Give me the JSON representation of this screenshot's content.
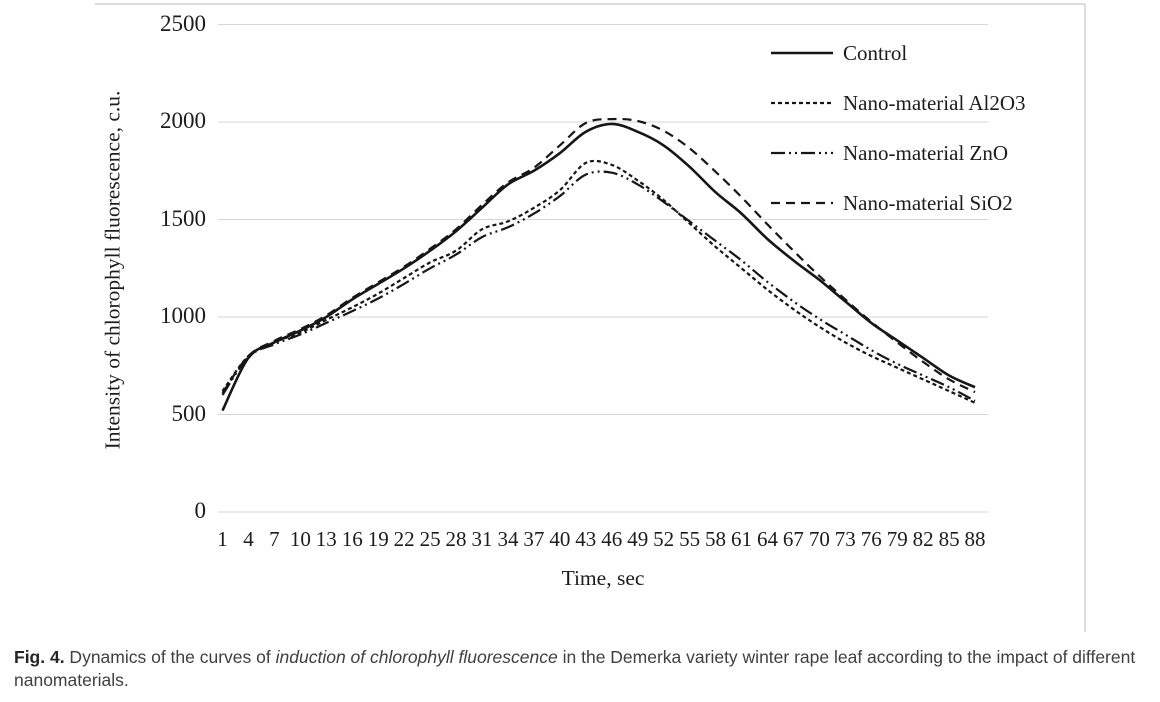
{
  "caption": {
    "label": "Fig. 4.",
    "before_italic": " Dynamics of the curves of ",
    "italic": "induction of chlorophyll fluorescence",
    "after_italic": " in the Demerka variety winter rape leaf according to the impact of different nanomaterials."
  },
  "chart_data": {
    "type": "line",
    "title": "",
    "xlabel": "Time, sec",
    "ylabel": "Intensity of chlorophyll fluorescence, c.u.",
    "x": [
      1,
      4,
      7,
      10,
      13,
      16,
      19,
      22,
      25,
      28,
      31,
      34,
      37,
      40,
      43,
      46,
      49,
      52,
      55,
      58,
      61,
      64,
      67,
      70,
      73,
      76,
      79,
      82,
      85,
      88
    ],
    "y_ticks": [
      0,
      500,
      1000,
      1500,
      2000,
      2500
    ],
    "ylim": [
      0,
      2500
    ],
    "xlim": [
      1,
      88
    ],
    "grid": "horizontal",
    "legend_position": "top-right-inside",
    "series": [
      {
        "name": "Control",
        "dash": "",
        "width": 2.6,
        "values": [
          520,
          790,
          870,
          930,
          1000,
          1090,
          1170,
          1250,
          1340,
          1440,
          1560,
          1680,
          1750,
          1840,
          1950,
          1990,
          1950,
          1880,
          1770,
          1640,
          1530,
          1400,
          1290,
          1190,
          1080,
          970,
          880,
          790,
          700,
          640
        ]
      },
      {
        "name": "Nano-material Al2O3",
        "dash": "4 3",
        "width": 2.2,
        "values": [
          620,
          800,
          870,
          920,
          985,
          1050,
          1120,
          1200,
          1280,
          1340,
          1450,
          1490,
          1560,
          1650,
          1790,
          1780,
          1700,
          1600,
          1480,
          1360,
          1250,
          1140,
          1040,
          950,
          870,
          800,
          740,
          680,
          620,
          560
        ]
      },
      {
        "name": "Nano-material ZnO",
        "dash": "14 4 2 4 2 4",
        "width": 2.2,
        "values": [
          600,
          795,
          860,
          910,
          970,
          1030,
          1095,
          1170,
          1250,
          1320,
          1410,
          1460,
          1530,
          1620,
          1730,
          1740,
          1680,
          1590,
          1490,
          1390,
          1290,
          1180,
          1080,
          990,
          910,
          830,
          760,
          700,
          640,
          570
        ]
      },
      {
        "name": "Nano-material SiO2",
        "dash": "9 6",
        "width": 2.2,
        "values": [
          610,
          800,
          878,
          938,
          1008,
          1098,
          1178,
          1258,
          1350,
          1450,
          1575,
          1690,
          1765,
          1880,
          1995,
          2015,
          2005,
          1955,
          1865,
          1745,
          1615,
          1475,
          1340,
          1210,
          1090,
          975,
          870,
          770,
          680,
          615
        ]
      }
    ],
    "colors": {
      "line": "#161616",
      "grid": "#d6d6d6",
      "frame": "#dcdcdc",
      "text": "#1c1c1c",
      "caption_text": "#3f3f3f"
    }
  }
}
